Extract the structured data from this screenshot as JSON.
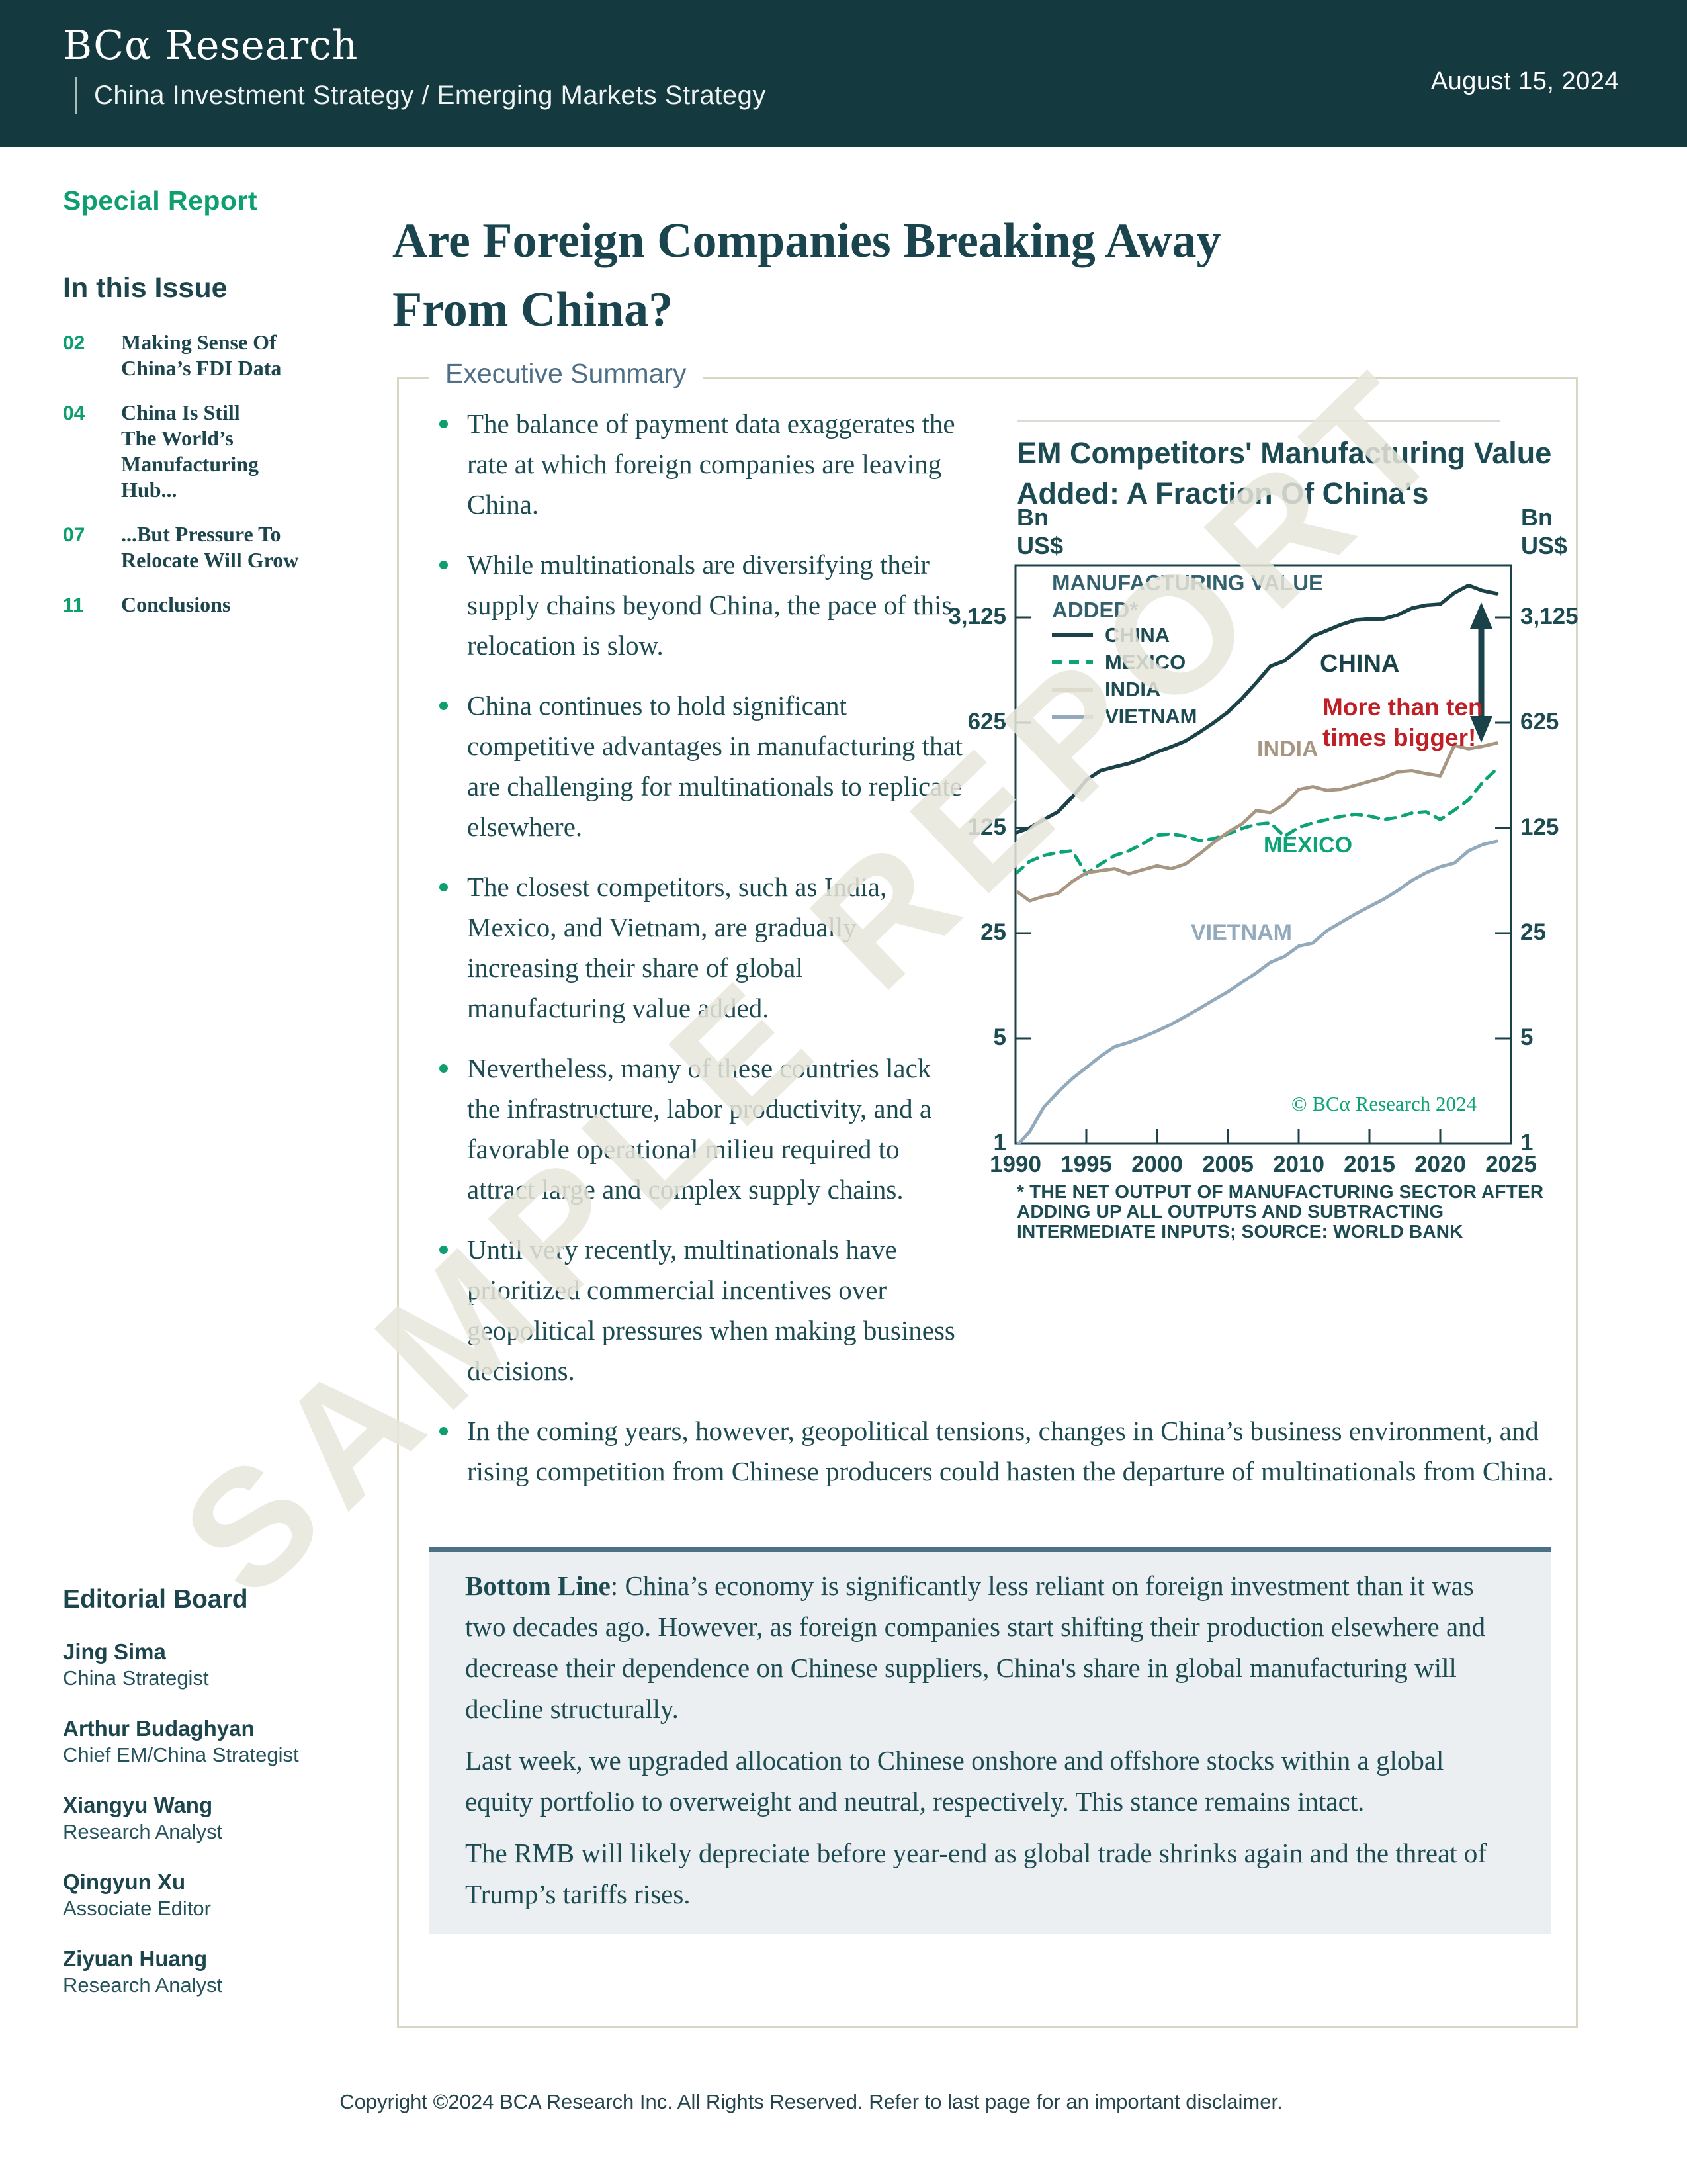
{
  "header": {
    "logo": "BCα Research",
    "strategies": "China Investment Strategy / Emerging Markets Strategy",
    "date": "August 15, 2024"
  },
  "sidebar": {
    "special_report": "Special Report",
    "in_this_issue": "In this Issue",
    "toc": [
      {
        "num": "02",
        "title": "Making Sense Of\nChina’s FDI Data"
      },
      {
        "num": "04",
        "title": "China Is Still\nThe World’s\nManufacturing\nHub..."
      },
      {
        "num": "07",
        "title": "...But Pressure To\nRelocate Will Grow"
      },
      {
        "num": "11",
        "title": "Conclusions"
      }
    ],
    "editorial": {
      "heading": "Editorial Board",
      "members": [
        {
          "name": "Jing Sima",
          "role": "China Strategist"
        },
        {
          "name": "Arthur Budaghyan",
          "role": "Chief EM/China Strategist"
        },
        {
          "name": "Xiangyu Wang",
          "role": "Research Analyst"
        },
        {
          "name": "Qingyun Xu",
          "role": "Associate Editor"
        },
        {
          "name": "Ziyuan Huang",
          "role": "Research Analyst"
        }
      ]
    }
  },
  "title": "Are Foreign Companies Breaking Away\nFrom China?",
  "exec": {
    "label": "Executive Summary",
    "bullets": [
      "The balance of payment data exaggerates the rate at which foreign companies are leaving China.",
      "While multinationals are diversifying their supply chains beyond China, the pace of this relocation is slow.",
      "China continues to hold significant competitive advantages in manufacturing that are challenging for multinationals to replicate elsewhere.",
      "The closest competitors, such as India, Mexico, and Vietnam, are gradually increasing their share of global manufacturing value added.",
      "Nevertheless, many of these countries lack the infrastructure, labor productivity, and a favorable operational milieu required to attract large and complex supply chains.",
      "Until very recently, multinationals have prioritized commercial incentives over geopolitical pressures when making business decisions.",
      "In the coming years, however, geopolitical tensions, changes in China’s business environment, and rising competition from Chinese producers could hasten the departure of multinationals from China."
    ]
  },
  "bottom_line": {
    "lead": "Bottom Line",
    "p1": ": China’s economy is significantly less reliant on foreign investment than it was two decades ago. However, as foreign companies start shifting their production elsewhere and decrease their dependence on Chinese suppliers, China's share in global manufacturing will decline structurally.",
    "p2": "Last week, we upgraded allocation to Chinese onshore and offshore stocks within a global equity portfolio to overweight and neutral, respectively. This stance remains intact.",
    "p3": "The RMB will likely depreciate before year-end as global trade shrinks again and the threat of Trump’s tariffs rises."
  },
  "chart_data": {
    "type": "line",
    "title": "EM Competitors' Manufacturing Value\nAdded: A Fraction Of China's",
    "unit_left": "Bn\nUS$",
    "unit_right": "Bn\nUS$",
    "scale": "log base 5",
    "legend_position": "top-left inside plot",
    "legend_title": "MANUFACTURING VALUE\nADDED*",
    "y_ticks": [
      "3,125",
      "625",
      "125",
      "25",
      "5",
      "1"
    ],
    "y_tick_values": [
      3125,
      625,
      125,
      25,
      5,
      1
    ],
    "x_ticks": [
      "1990",
      "1995",
      "2000",
      "2005",
      "2010",
      "2015",
      "2020",
      "2025"
    ],
    "x_range": [
      1990,
      2025
    ],
    "years_start": 1990,
    "series": [
      {
        "name": "CHINA",
        "color": "#1b4249",
        "style": "solid",
        "width": 5.5,
        "values": [
          116,
          125,
          142,
          160,
          200,
          260,
          300,
          318,
          335,
          362,
          400,
          432,
          472,
          540,
          625,
          735,
          905,
          1150,
          1480,
          1610,
          1925,
          2350,
          2560,
          2800,
          3000,
          3050,
          3060,
          3250,
          3600,
          3770,
          3830,
          4550,
          5100,
          4700,
          4500
        ]
      },
      {
        "name": "MEXICO",
        "color": "#0ca377",
        "style": "dashed",
        "width": 5,
        "dash": "15 11",
        "values": [
          62,
          75,
          82,
          86,
          88,
          62,
          72,
          82,
          88,
          98,
          112,
          114,
          110,
          103,
          106,
          114,
          124,
          132,
          135,
          110,
          126,
          135,
          142,
          149,
          154,
          150,
          142,
          147,
          157,
          160,
          142,
          164,
          192,
          252,
          308
        ]
      },
      {
        "name": "INDIA",
        "color": "#a79682",
        "style": "solid",
        "width": 5,
        "values": [
          48,
          41,
          44,
          46,
          55,
          63,
          65,
          67,
          62,
          66,
          70,
          67,
          72,
          84,
          100,
          117,
          133,
          163,
          158,
          180,
          225,
          235,
          222,
          226,
          240,
          255,
          270,
          295,
          300,
          287,
          277,
          442,
          420,
          436,
          458
        ]
      },
      {
        "name": "VIETNAM",
        "color": "#92aabb",
        "style": "solid",
        "width": 5,
        "values": [
          0.95,
          1.2,
          1.75,
          2.2,
          2.7,
          3.2,
          3.8,
          4.4,
          4.7,
          5.1,
          5.6,
          6.2,
          7.0,
          7.9,
          9.0,
          10.2,
          11.8,
          13.6,
          16,
          17.5,
          20.5,
          21.5,
          26,
          29.5,
          33.5,
          37.5,
          42,
          48,
          56,
          63,
          69,
          73,
          88,
          97,
          102
        ]
      }
    ],
    "annotations": {
      "china_label": "CHINA",
      "india_label": "INDIA",
      "mexico_label": "MEXICO",
      "vietnam_label": "VIETNAM",
      "callout": "More than ten\ntimes bigger!",
      "callout_color": "#bf2026",
      "arrow": "double-headed vertical arrow from China line down to India line at right edge",
      "copyright": "© BCα Research 2024"
    },
    "footnote": "* THE NET OUTPUT OF MANUFACTURING SECTOR AFTER\nADDING UP ALL OUTPUTS AND SUBTRACTING\nINTERMEDIATE INPUTS; SOURCE: WORLD BANK"
  },
  "watermark": "SAMPLE REPORT",
  "footer": "Copyright ©2024 BCA Research Inc. All Rights Reserved. Refer to last page for an important disclaimer.",
  "colors": {
    "header_bg": "#143a40",
    "accent_green": "#0d9f70",
    "dark_teal_text": "#1c454d",
    "slate_label": "#4f7086",
    "box_border_tan": "#d9d6c3",
    "bottom_box_bg": "#ebeff2",
    "bottom_box_border": "#4c7086",
    "callout_red": "#bf2026"
  }
}
